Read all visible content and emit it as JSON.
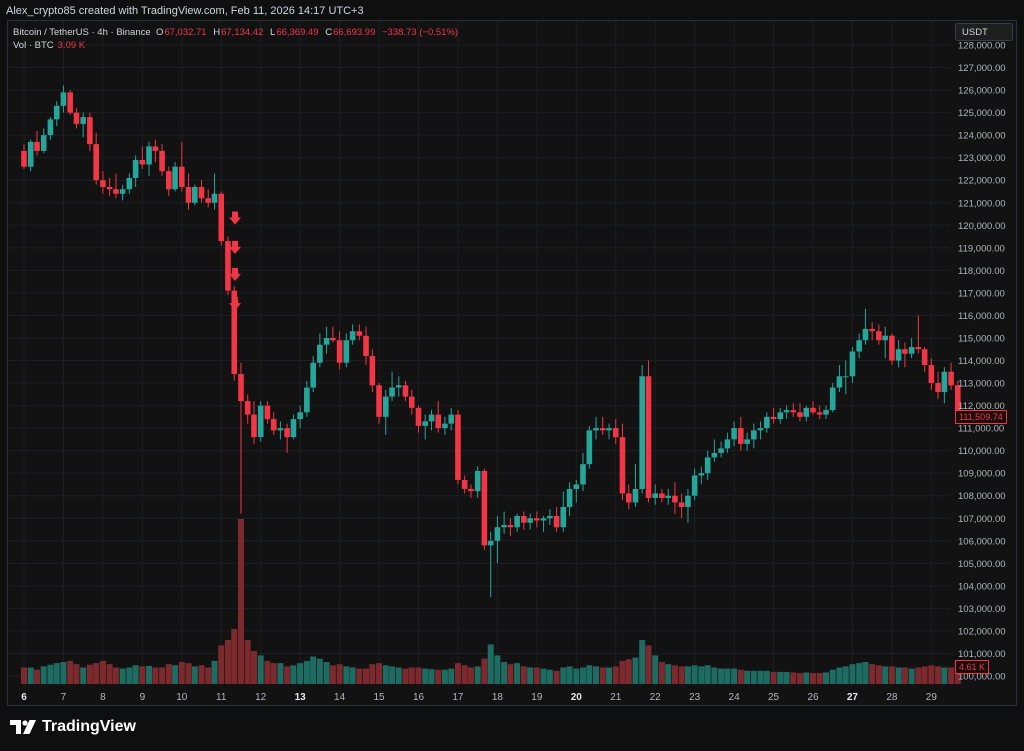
{
  "header": {
    "credit": "Alex_crypto85 created with TradingView.com, Feb 11, 2026 14:17 UTC+3"
  },
  "legend": {
    "symbol": "Bitcoin / TetherUS · 4h · Binance",
    "o_label": "O",
    "o": "67,032.71",
    "h_label": "H",
    "h": "67,134.42",
    "l_label": "L",
    "l": "66,369.49",
    "c_label": "C",
    "c": "66,693.99",
    "change": "−338.73 (−0.51%)",
    "vol_label": "Vol · BTC",
    "vol": "3.09 K"
  },
  "currency_button": "USDT",
  "last_price_badge": "111,509.74",
  "last_volume_badge": "4.61 K",
  "branding": "TradingView",
  "colors": {
    "up": "#26a69a",
    "down": "#f23645",
    "vol_up": "#1e6b62",
    "vol_down": "#7d2a2f",
    "arrow": "#f23645"
  },
  "chart_data": {
    "type": "candlestick",
    "y_axis": {
      "min": 100000,
      "max": 128000,
      "step": 1000,
      "ticks": [
        "100,000.00",
        "101,000.00",
        "102,000.00",
        "103,000.00",
        "104,000.00",
        "105,000.00",
        "106,000.00",
        "107,000.00",
        "108,000.00",
        "109,000.00",
        "110,000.00",
        "111,000.00",
        "112,000.00",
        "113,000.00",
        "114,000.00",
        "115,000.00",
        "116,000.00",
        "117,000.00",
        "118,000.00",
        "119,000.00",
        "120,000.00",
        "121,000.00",
        "122,000.00",
        "123,000.00",
        "124,000.00",
        "125,000.00",
        "126,000.00",
        "127,000.00",
        "128,000.00"
      ]
    },
    "x_axis": {
      "labels": [
        "6",
        "7",
        "8",
        "9",
        "10",
        "11",
        "12",
        "13",
        "14",
        "15",
        "16",
        "17",
        "18",
        "19",
        "20",
        "21",
        "22",
        "23",
        "24",
        "25",
        "26",
        "27",
        "28",
        "29"
      ],
      "bold": [
        "6",
        "13",
        "20",
        "27"
      ]
    },
    "arrow_annotations": [
      {
        "time": 11.35,
        "price": 120300
      },
      {
        "time": 11.35,
        "price": 119000
      },
      {
        "time": 11.35,
        "price": 117800
      },
      {
        "time": 11.35,
        "price": 116500
      }
    ],
    "candles": [
      [
        6.0,
        123300,
        123600,
        122500,
        122600,
        300
      ],
      [
        6.17,
        122600,
        123800,
        122400,
        123700,
        300
      ],
      [
        6.33,
        123700,
        124200,
        123100,
        123300,
        260
      ],
      [
        6.5,
        123300,
        124300,
        123200,
        124000,
        320
      ],
      [
        6.67,
        124000,
        124800,
        123800,
        124700,
        350
      ],
      [
        6.83,
        124700,
        125500,
        124400,
        125300,
        380
      ],
      [
        7.0,
        125300,
        126200,
        125000,
        125900,
        400
      ],
      [
        7.17,
        125900,
        126000,
        124900,
        125000,
        420
      ],
      [
        7.33,
        125000,
        125200,
        124300,
        124500,
        360
      ],
      [
        7.5,
        124500,
        125000,
        123900,
        124800,
        300
      ],
      [
        7.67,
        124800,
        125000,
        123300,
        123600,
        350
      ],
      [
        7.83,
        123600,
        124100,
        121800,
        122000,
        380
      ],
      [
        8.0,
        122000,
        122400,
        121400,
        121700,
        420
      ],
      [
        8.17,
        121700,
        122100,
        121300,
        121600,
        360
      ],
      [
        8.33,
        121600,
        122300,
        121200,
        121400,
        300
      ],
      [
        8.5,
        121400,
        121800,
        121100,
        121600,
        280
      ],
      [
        8.67,
        121600,
        122300,
        121400,
        122100,
        300
      ],
      [
        8.83,
        122100,
        123100,
        121700,
        122900,
        340
      ],
      [
        9.0,
        122900,
        123500,
        122500,
        122700,
        320
      ],
      [
        9.17,
        122700,
        123700,
        122200,
        123500,
        330
      ],
      [
        9.33,
        123500,
        123800,
        122800,
        123300,
        300
      ],
      [
        9.5,
        123300,
        123600,
        122200,
        122400,
        300
      ],
      [
        9.67,
        122400,
        122600,
        121300,
        121600,
        360
      ],
      [
        9.83,
        121600,
        122800,
        121500,
        122600,
        340
      ],
      [
        10.0,
        122600,
        123700,
        121500,
        121700,
        400
      ],
      [
        10.17,
        121700,
        122300,
        120700,
        121000,
        380
      ],
      [
        10.33,
        121000,
        121800,
        120900,
        121700,
        320
      ],
      [
        10.5,
        121700,
        122000,
        121000,
        121200,
        340
      ],
      [
        10.67,
        121200,
        121600,
        120800,
        121000,
        300
      ],
      [
        10.83,
        121000,
        122300,
        120700,
        121400,
        420
      ],
      [
        11.0,
        121400,
        121500,
        119100,
        119300,
        700
      ],
      [
        11.17,
        119300,
        119500,
        116900,
        117100,
        800
      ],
      [
        11.33,
        117100,
        117300,
        113100,
        113400,
        1000
      ],
      [
        11.5,
        113400,
        113900,
        107200,
        112200,
        3000
      ],
      [
        11.67,
        112200,
        112500,
        111200,
        111600,
        800
      ],
      [
        11.83,
        111600,
        112200,
        110300,
        110600,
        600
      ],
      [
        12.0,
        110600,
        112200,
        110400,
        112000,
        520
      ],
      [
        12.17,
        112000,
        112200,
        111200,
        111400,
        420
      ],
      [
        12.33,
        111400,
        111700,
        110700,
        110900,
        380
      ],
      [
        12.5,
        110900,
        111300,
        110500,
        111000,
        380
      ],
      [
        12.67,
        111000,
        111200,
        109900,
        110600,
        320
      ],
      [
        12.83,
        110600,
        111600,
        110500,
        111400,
        340
      ],
      [
        13.0,
        111400,
        112000,
        111000,
        111700,
        380
      ],
      [
        13.17,
        111700,
        113100,
        111500,
        112800,
        420
      ],
      [
        13.33,
        112800,
        114200,
        112600,
        113900,
        500
      ],
      [
        13.5,
        113900,
        115200,
        113700,
        114700,
        460
      ],
      [
        13.67,
        114700,
        115500,
        114300,
        115000,
        400
      ],
      [
        13.83,
        115000,
        115500,
        114800,
        114900,
        340
      ],
      [
        14.0,
        114900,
        115300,
        113600,
        113900,
        360
      ],
      [
        14.17,
        113900,
        115200,
        113700,
        114900,
        320
      ],
      [
        14.33,
        114900,
        115600,
        114700,
        115300,
        300
      ],
      [
        14.5,
        115300,
        115600,
        114900,
        115100,
        280
      ],
      [
        14.67,
        115100,
        115500,
        113800,
        114200,
        280
      ],
      [
        14.83,
        114200,
        114500,
        112600,
        112900,
        360
      ],
      [
        15.0,
        112900,
        113000,
        111200,
        111500,
        380
      ],
      [
        15.17,
        111500,
        112700,
        110700,
        112400,
        340
      ],
      [
        15.33,
        112400,
        113500,
        112200,
        112800,
        320
      ],
      [
        15.5,
        112800,
        113300,
        112400,
        112900,
        300
      ],
      [
        15.67,
        112900,
        113100,
        112200,
        112400,
        280
      ],
      [
        15.83,
        112400,
        112700,
        111600,
        111900,
        300
      ],
      [
        16.0,
        111900,
        112000,
        110800,
        111100,
        300
      ],
      [
        16.17,
        111100,
        111600,
        110500,
        111300,
        280
      ],
      [
        16.33,
        111300,
        111800,
        110900,
        111600,
        270
      ],
      [
        16.5,
        111600,
        112200,
        110800,
        111000,
        260
      ],
      [
        16.67,
        111000,
        111500,
        110700,
        111200,
        260
      ],
      [
        16.83,
        111200,
        111900,
        110900,
        111600,
        280
      ],
      [
        17.0,
        111600,
        111800,
        108500,
        108700,
        380
      ],
      [
        17.17,
        108700,
        108900,
        108100,
        108300,
        340
      ],
      [
        17.33,
        108300,
        108500,
        107900,
        108200,
        300
      ],
      [
        17.5,
        108200,
        109300,
        107900,
        109100,
        320
      ],
      [
        17.67,
        109100,
        109200,
        105600,
        105800,
        460
      ],
      [
        17.83,
        105800,
        106400,
        103500,
        106000,
        720
      ],
      [
        18.0,
        106000,
        107100,
        105000,
        106600,
        520
      ],
      [
        18.17,
        106600,
        107300,
        106300,
        106700,
        400
      ],
      [
        18.33,
        106700,
        107000,
        106200,
        106600,
        360
      ],
      [
        18.5,
        106600,
        107200,
        106400,
        107100,
        380
      ],
      [
        18.67,
        107100,
        107300,
        106500,
        106800,
        320
      ],
      [
        18.83,
        106800,
        107200,
        106500,
        107000,
        300
      ],
      [
        19.0,
        107000,
        107300,
        106600,
        106900,
        300
      ],
      [
        19.17,
        106900,
        107100,
        106400,
        107000,
        280
      ],
      [
        19.33,
        107000,
        107400,
        106700,
        107100,
        260
      ],
      [
        19.5,
        107100,
        107500,
        106400,
        106600,
        240
      ],
      [
        19.67,
        106600,
        108200,
        106400,
        107500,
        300
      ],
      [
        19.83,
        107500,
        108600,
        107100,
        108300,
        320
      ],
      [
        20.0,
        108300,
        108700,
        107700,
        108500,
        280
      ],
      [
        20.17,
        108500,
        109900,
        108200,
        109400,
        300
      ],
      [
        20.33,
        109400,
        111100,
        109200,
        110900,
        340
      ],
      [
        20.5,
        110900,
        111500,
        110500,
        111000,
        320
      ],
      [
        20.67,
        111000,
        111500,
        110700,
        110900,
        300
      ],
      [
        20.83,
        110900,
        111200,
        110500,
        111000,
        300
      ],
      [
        21.0,
        111000,
        111400,
        110300,
        110600,
        320
      ],
      [
        21.17,
        110600,
        111200,
        107800,
        108100,
        420
      ],
      [
        21.33,
        108100,
        108500,
        107400,
        107700,
        450
      ],
      [
        21.5,
        107700,
        109400,
        107500,
        108300,
        480
      ],
      [
        21.67,
        108300,
        113800,
        108100,
        113300,
        800
      ],
      [
        21.83,
        113300,
        114000,
        107700,
        107900,
        700
      ],
      [
        22.0,
        107900,
        108500,
        107600,
        108100,
        520
      ],
      [
        22.17,
        108100,
        108300,
        107700,
        107900,
        400
      ],
      [
        22.33,
        107900,
        108300,
        107600,
        108000,
        360
      ],
      [
        22.5,
        108000,
        108600,
        107200,
        107700,
        340
      ],
      [
        22.67,
        107700,
        108100,
        107000,
        107500,
        320
      ],
      [
        22.83,
        107500,
        108300,
        106800,
        108000,
        320
      ],
      [
        23.0,
        108000,
        109200,
        107800,
        108900,
        340
      ],
      [
        23.17,
        108900,
        109300,
        108500,
        109000,
        320
      ],
      [
        23.33,
        109000,
        110000,
        108700,
        109700,
        340
      ],
      [
        23.5,
        109700,
        110500,
        109500,
        109900,
        300
      ],
      [
        23.67,
        109900,
        110400,
        109700,
        110100,
        280
      ],
      [
        23.83,
        110100,
        110800,
        109900,
        110500,
        280
      ],
      [
        24.0,
        110500,
        111300,
        110200,
        111000,
        280
      ],
      [
        24.17,
        111000,
        111500,
        110000,
        110300,
        260
      ],
      [
        24.33,
        110300,
        110800,
        110000,
        110500,
        240
      ],
      [
        24.5,
        110500,
        111200,
        110100,
        110900,
        240
      ],
      [
        24.67,
        110900,
        111300,
        110500,
        111000,
        240
      ],
      [
        24.83,
        111000,
        111700,
        110800,
        111500,
        240
      ],
      [
        25.0,
        111500,
        111900,
        111200,
        111400,
        220
      ],
      [
        25.17,
        111400,
        111900,
        111200,
        111700,
        220
      ],
      [
        25.33,
        111700,
        112000,
        111400,
        111800,
        220
      ],
      [
        25.5,
        111800,
        112100,
        111500,
        111700,
        210
      ],
      [
        25.67,
        111700,
        112100,
        111300,
        111500,
        200
      ],
      [
        25.83,
        111500,
        112000,
        111300,
        111900,
        210
      ],
      [
        26.0,
        111900,
        112200,
        111600,
        111700,
        200
      ],
      [
        26.17,
        111700,
        112000,
        111400,
        111600,
        200
      ],
      [
        26.33,
        111600,
        112000,
        111400,
        111800,
        210
      ],
      [
        26.5,
        111800,
        113000,
        111700,
        112800,
        260
      ],
      [
        26.67,
        112800,
        113800,
        112600,
        113300,
        300
      ],
      [
        26.83,
        113300,
        114000,
        112500,
        113300,
        320
      ],
      [
        27.0,
        113300,
        114600,
        113000,
        114400,
        360
      ],
      [
        27.17,
        114400,
        115200,
        114100,
        114900,
        380
      ],
      [
        27.33,
        114900,
        116300,
        114700,
        115400,
        400
      ],
      [
        27.5,
        115400,
        115700,
        114900,
        115300,
        360
      ],
      [
        27.67,
        115300,
        115600,
        114700,
        114900,
        340
      ],
      [
        27.83,
        114900,
        115500,
        114100,
        115100,
        320
      ],
      [
        28.0,
        115100,
        115200,
        113800,
        114000,
        320
      ],
      [
        28.17,
        114000,
        114900,
        113700,
        114500,
        300
      ],
      [
        28.33,
        114500,
        114800,
        113700,
        114300,
        300
      ],
      [
        28.5,
        114300,
        115000,
        114100,
        114600,
        280
      ],
      [
        28.67,
        114600,
        116000,
        114300,
        114500,
        300
      ],
      [
        28.83,
        114500,
        114600,
        113500,
        113800,
        320
      ],
      [
        29.0,
        113800,
        114100,
        112700,
        113000,
        340
      ],
      [
        29.17,
        113000,
        113500,
        112300,
        112600,
        320
      ],
      [
        29.33,
        112600,
        113700,
        112100,
        113500,
        300
      ],
      [
        29.5,
        113500,
        113900,
        112700,
        112900,
        300
      ],
      [
        29.67,
        112900,
        113100,
        111300,
        111510,
        420
      ]
    ]
  }
}
